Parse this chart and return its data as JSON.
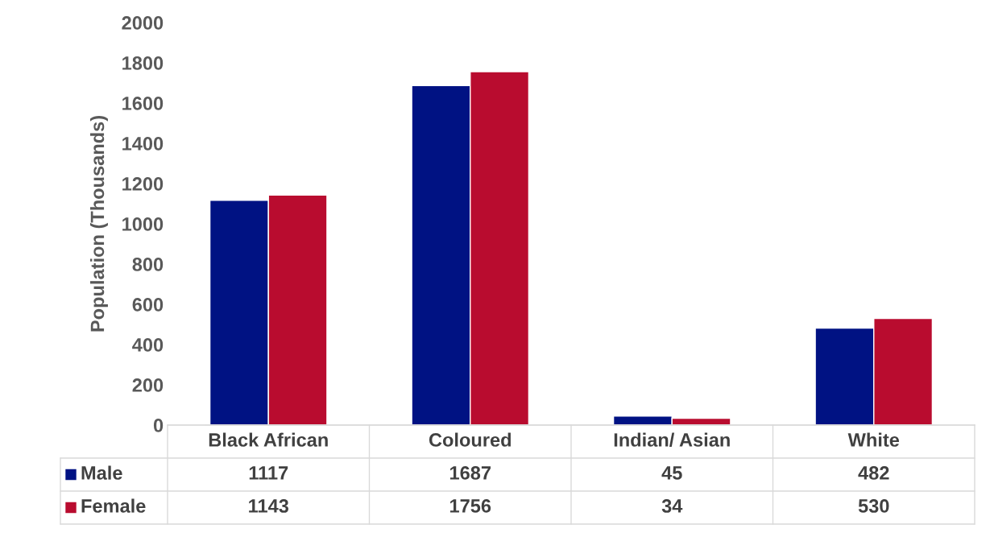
{
  "chart_data": {
    "type": "bar",
    "ylabel": "Population (Thousands)",
    "categories": [
      "Black African",
      "Coloured",
      "Indian/ Asian",
      "White"
    ],
    "series": [
      {
        "name": "Male",
        "color": "#001283",
        "values": [
          1117,
          1687,
          45,
          482
        ]
      },
      {
        "name": "Female",
        "color": "#b90c2f",
        "values": [
          1143,
          1756,
          34,
          530
        ]
      }
    ],
    "ylim": [
      0,
      2000
    ],
    "yticks": [
      0,
      200,
      400,
      600,
      800,
      1000,
      1200,
      1400,
      1600,
      1800,
      2000
    ],
    "grid": false,
    "legend": "bottom",
    "data_labels": true
  }
}
